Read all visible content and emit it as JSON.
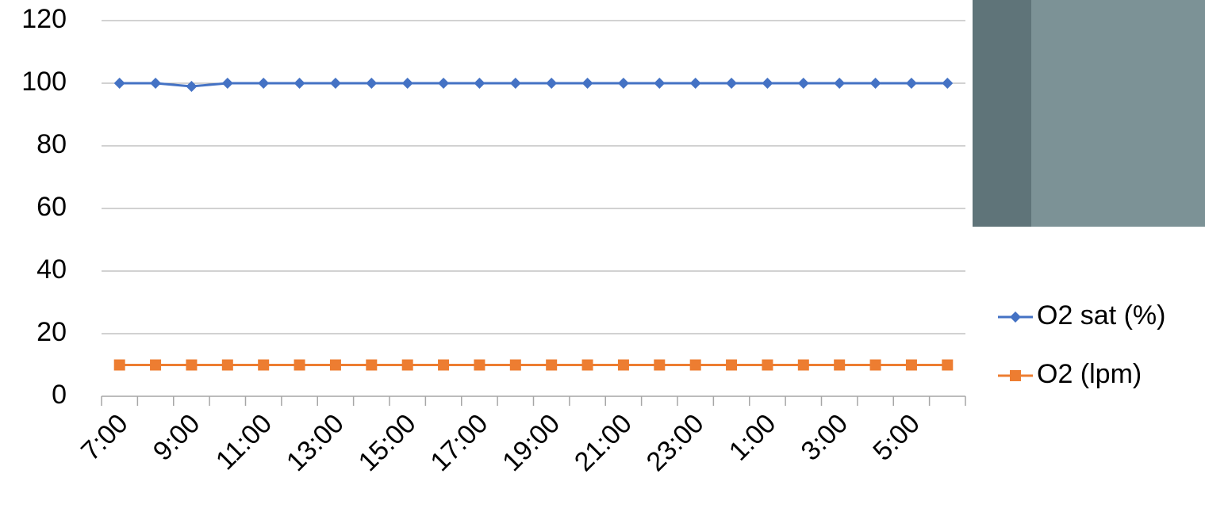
{
  "chart_data": {
    "type": "line",
    "categories": [
      "7:00",
      null,
      "9:00",
      null,
      "11:00",
      null,
      "13:00",
      null,
      "15:00",
      null,
      "17:00",
      null,
      "19:00",
      null,
      "21:00",
      null,
      "23:00",
      null,
      "1:00",
      null,
      "3:00",
      null,
      "5:00",
      null
    ],
    "series": [
      {
        "name": "O2 sat (%)",
        "color": "#4472c4",
        "marker": "diamond",
        "values": [
          100,
          100,
          99,
          100,
          100,
          100,
          100,
          100,
          100,
          100,
          100,
          100,
          100,
          100,
          100,
          100,
          100,
          100,
          100,
          100,
          100,
          100,
          100,
          100
        ]
      },
      {
        "name": "O2 (lpm)",
        "color": "#ed7d31",
        "marker": "square",
        "values": [
          10,
          10,
          10,
          10,
          10,
          10,
          10,
          10,
          10,
          10,
          10,
          10,
          10,
          10,
          10,
          10,
          10,
          10,
          10,
          10,
          10,
          10,
          10,
          10
        ]
      }
    ],
    "ylim": [
      0,
      120
    ],
    "yticks": [
      0,
      20,
      40,
      60,
      80,
      100,
      120
    ],
    "grid": true,
    "legend": "right"
  }
}
